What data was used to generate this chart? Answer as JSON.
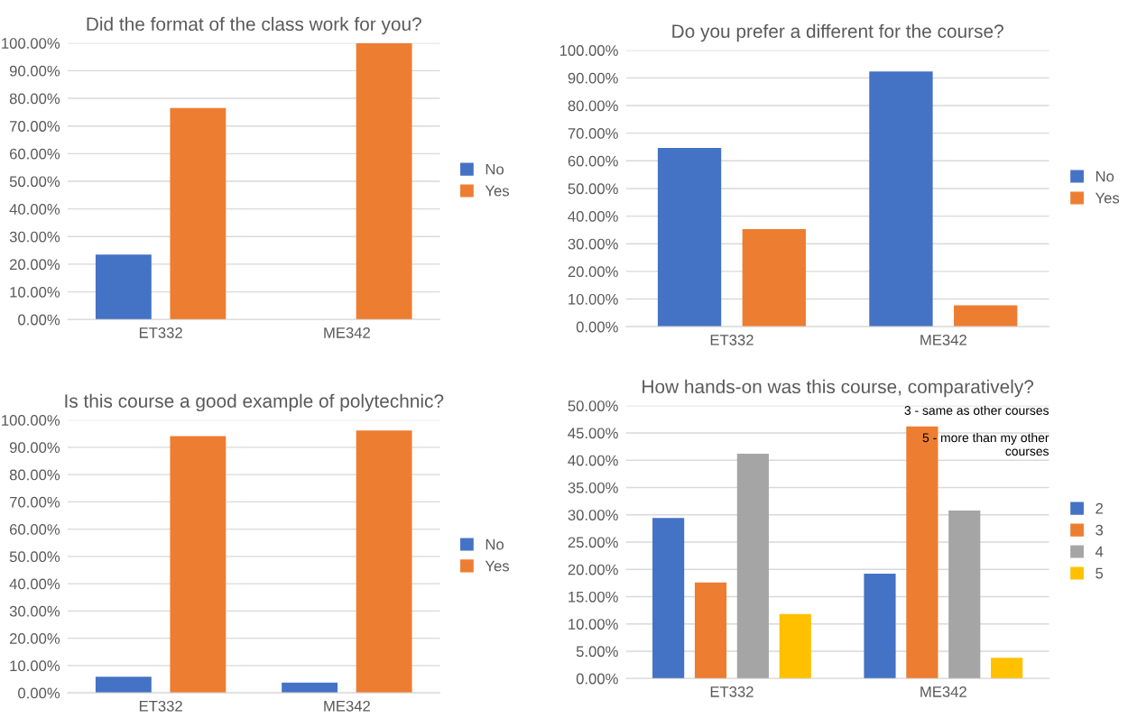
{
  "chart_data": [
    {
      "type": "bar",
      "title": "Did the format of the class work for you?",
      "categories": [
        "ET332",
        "ME342"
      ],
      "series": [
        {
          "name": "No",
          "color": "#4472c4",
          "values": [
            23.5,
            0
          ]
        },
        {
          "name": "Yes",
          "color": "#ed7d31",
          "values": [
            76.5,
            100
          ]
        }
      ],
      "ylim": [
        0,
        100
      ],
      "yticks": [
        {
          "value": 0,
          "label": "0.00%"
        },
        {
          "value": 10,
          "label": "10.00%"
        },
        {
          "value": 20,
          "label": "20.00%"
        },
        {
          "value": 30,
          "label": "30.00%"
        },
        {
          "value": 40,
          "label": "40.00%"
        },
        {
          "value": 50,
          "label": "50.00%"
        },
        {
          "value": 60,
          "label": "60.00%"
        },
        {
          "value": 70,
          "label": "70.00%"
        },
        {
          "value": 80,
          "label": "80.00%"
        },
        {
          "value": 90,
          "label": "90.00%"
        },
        {
          "value": 100,
          "label": "100.00%"
        }
      ],
      "grid": "y",
      "legend": "right"
    },
    {
      "type": "bar",
      "title": "Do you prefer a different for the course?",
      "categories": [
        "ET332",
        "ME342"
      ],
      "series": [
        {
          "name": "No",
          "color": "#4472c4",
          "values": [
            64.7,
            92.3
          ]
        },
        {
          "name": "Yes",
          "color": "#ed7d31",
          "values": [
            35.3,
            7.7
          ]
        }
      ],
      "ylim": [
        0,
        100
      ],
      "yticks": [
        {
          "value": 0,
          "label": "0.00%"
        },
        {
          "value": 10,
          "label": "10.00%"
        },
        {
          "value": 20,
          "label": "20.00%"
        },
        {
          "value": 30,
          "label": "30.00%"
        },
        {
          "value": 40,
          "label": "40.00%"
        },
        {
          "value": 50,
          "label": "50.00%"
        },
        {
          "value": 60,
          "label": "60.00%"
        },
        {
          "value": 70,
          "label": "70.00%"
        },
        {
          "value": 80,
          "label": "80.00%"
        },
        {
          "value": 90,
          "label": "90.00%"
        },
        {
          "value": 100,
          "label": "100.00%"
        }
      ],
      "grid": "y",
      "legend": "right"
    },
    {
      "type": "bar",
      "title": "Is this course a good example of polytechnic?",
      "categories": [
        "ET332",
        "ME342"
      ],
      "series": [
        {
          "name": "No",
          "color": "#4472c4",
          "values": [
            5.9,
            3.8
          ]
        },
        {
          "name": "Yes",
          "color": "#ed7d31",
          "values": [
            94.1,
            96.2
          ]
        }
      ],
      "ylim": [
        0,
        100
      ],
      "yticks": [
        {
          "value": 0,
          "label": "0.00%"
        },
        {
          "value": 10,
          "label": "10.00%"
        },
        {
          "value": 20,
          "label": "20.00%"
        },
        {
          "value": 30,
          "label": "30.00%"
        },
        {
          "value": 40,
          "label": "40.00%"
        },
        {
          "value": 50,
          "label": "50.00%"
        },
        {
          "value": 60,
          "label": "60.00%"
        },
        {
          "value": 70,
          "label": "70.00%"
        },
        {
          "value": 80,
          "label": "80.00%"
        },
        {
          "value": 90,
          "label": "90.00%"
        },
        {
          "value": 100,
          "label": "100.00%"
        }
      ],
      "grid": "y",
      "legend": "right"
    },
    {
      "type": "bar",
      "title": "How hands-on was this course, comparatively?",
      "categories": [
        "ET332",
        "ME342"
      ],
      "series": [
        {
          "name": "2",
          "color": "#4472c4",
          "values": [
            29.4,
            19.2
          ]
        },
        {
          "name": "3",
          "color": "#ed7d31",
          "values": [
            17.6,
            46.2
          ]
        },
        {
          "name": "4",
          "color": "#a5a5a5",
          "values": [
            41.2,
            30.8
          ]
        },
        {
          "name": "5",
          "color": "#ffc000",
          "values": [
            11.8,
            3.8
          ]
        }
      ],
      "ylim": [
        0,
        50
      ],
      "yticks": [
        {
          "value": 0,
          "label": "0.00%"
        },
        {
          "value": 5,
          "label": "5.00%"
        },
        {
          "value": 10,
          "label": "10.00%"
        },
        {
          "value": 15,
          "label": "15.00%"
        },
        {
          "value": 20,
          "label": "20.00%"
        },
        {
          "value": 25,
          "label": "25.00%"
        },
        {
          "value": 30,
          "label": "30.00%"
        },
        {
          "value": 35,
          "label": "35.00%"
        },
        {
          "value": 40,
          "label": "40.00%"
        },
        {
          "value": 45,
          "label": "45.00%"
        },
        {
          "value": 50,
          "label": "50.00%"
        }
      ],
      "annotations": [
        "3 - same as other courses",
        "5 - more than my other\ncourses"
      ],
      "grid": "y",
      "legend": "right"
    }
  ]
}
